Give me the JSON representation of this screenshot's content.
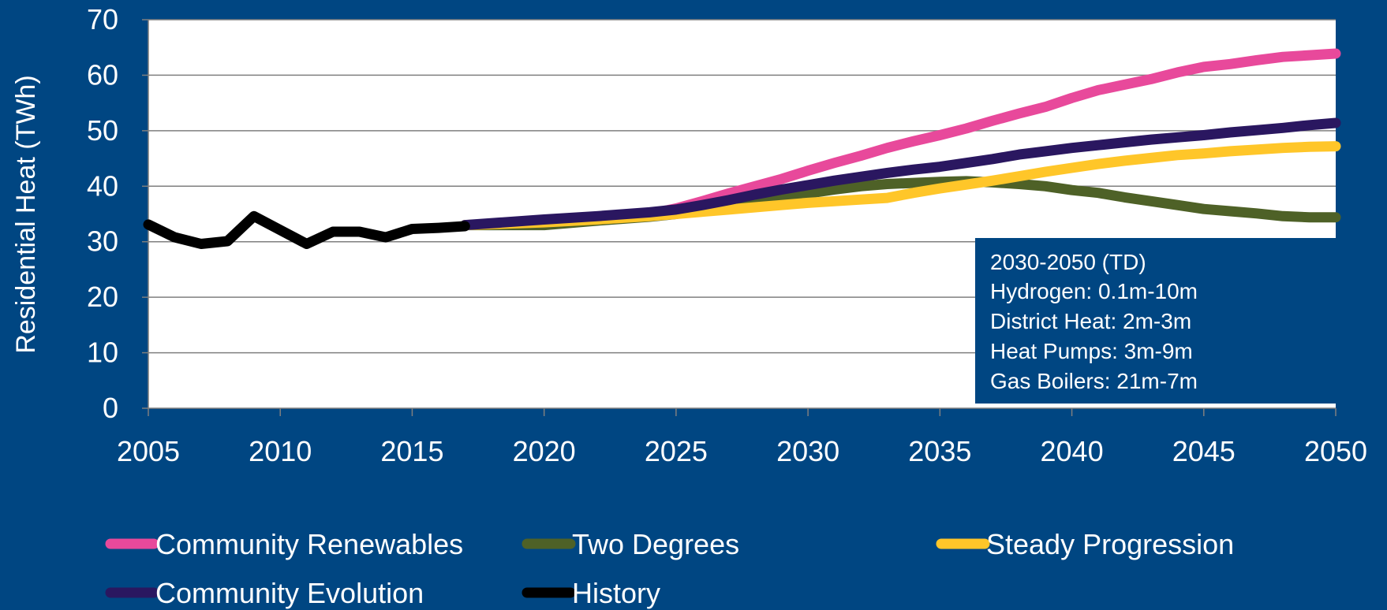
{
  "chart_data": {
    "type": "line",
    "title": "",
    "xlabel": "",
    "ylabel": "Residential Heat (TWh)",
    "xlim": [
      2005,
      2050
    ],
    "ylim": [
      0,
      70
    ],
    "xticks": [
      2005,
      2010,
      2015,
      2020,
      2025,
      2030,
      2035,
      2040,
      2045,
      2050
    ],
    "yticks": [
      0,
      10,
      20,
      30,
      40,
      50,
      60,
      70
    ],
    "grid": "horizontal",
    "legend_position": "bottom",
    "series": [
      {
        "name": "Community Renewables",
        "color": "#E8499B",
        "x": [
          2017,
          2020,
          2022,
          2024,
          2025,
          2026,
          2027,
          2028,
          2029,
          2030,
          2031,
          2032,
          2033,
          2034,
          2035,
          2036,
          2037,
          2038,
          2039,
          2040,
          2041,
          2042,
          2043,
          2044,
          2045,
          2046,
          2047,
          2048,
          2049,
          2050
        ],
        "y": [
          33,
          33.5,
          34.2,
          35,
          36,
          37.3,
          38.7,
          40,
          41.3,
          42.8,
          44.2,
          45.5,
          46.9,
          48.1,
          49.2,
          50.4,
          51.8,
          53.1,
          54.3,
          55.9,
          57.3,
          58.3,
          59.3,
          60.5,
          61.5,
          62,
          62.7,
          63.3,
          63.6,
          63.9
        ]
      },
      {
        "name": "Two Degrees",
        "color": "#4E6127",
        "x": [
          2017,
          2020,
          2022,
          2024,
          2025,
          2026,
          2027,
          2028,
          2029,
          2030,
          2031,
          2032,
          2033,
          2034,
          2035,
          2036,
          2037,
          2038,
          2039,
          2040,
          2041,
          2042,
          2043,
          2044,
          2045,
          2046,
          2047,
          2048,
          2049,
          2050
        ],
        "y": [
          33,
          33,
          33.8,
          34.5,
          35,
          35.8,
          36.5,
          37.2,
          37.9,
          38.7,
          39.4,
          40,
          40.4,
          40.6,
          40.8,
          40.9,
          40.7,
          40.4,
          40,
          39.3,
          38.8,
          38,
          37.3,
          36.6,
          35.9,
          35.5,
          35.1,
          34.6,
          34.4,
          34.4
        ]
      },
      {
        "name": "Steady Progression",
        "color": "#FFC629",
        "x": [
          2017,
          2020,
          2022,
          2024,
          2025,
          2026,
          2027,
          2028,
          2029,
          2030,
          2031,
          2032,
          2033,
          2034,
          2035,
          2036,
          2037,
          2038,
          2039,
          2040,
          2041,
          2042,
          2043,
          2044,
          2045,
          2046,
          2047,
          2048,
          2049,
          2050
        ],
        "y": [
          33,
          33.5,
          34,
          34.6,
          35,
          35.4,
          35.8,
          36.2,
          36.6,
          37,
          37.3,
          37.6,
          37.9,
          38.8,
          39.6,
          40.3,
          41,
          41.8,
          42.6,
          43.3,
          44,
          44.6,
          45.1,
          45.6,
          45.9,
          46.3,
          46.6,
          46.9,
          47.1,
          47.2
        ]
      },
      {
        "name": "Community Evolution",
        "color": "#2A1760",
        "x": [
          2017,
          2020,
          2022,
          2024,
          2025,
          2026,
          2027,
          2028,
          2029,
          2030,
          2031,
          2032,
          2033,
          2034,
          2035,
          2036,
          2037,
          2038,
          2039,
          2040,
          2041,
          2042,
          2043,
          2044,
          2045,
          2046,
          2047,
          2048,
          2049,
          2050
        ],
        "y": [
          33,
          34,
          34.6,
          35.3,
          35.8,
          36.6,
          37.5,
          38.5,
          39.4,
          40.2,
          41,
          41.7,
          42.4,
          43,
          43.5,
          44.2,
          44.9,
          45.7,
          46.3,
          46.9,
          47.4,
          47.9,
          48.4,
          48.8,
          49.2,
          49.7,
          50.1,
          50.5,
          51,
          51.4
        ]
      },
      {
        "name": "History",
        "color": "#000000",
        "x": [
          2005,
          2006,
          2007,
          2008,
          2009,
          2010,
          2011,
          2012,
          2013,
          2014,
          2015,
          2016,
          2017
        ],
        "y": [
          33.1,
          30.8,
          29.6,
          30.1,
          34.6,
          32.1,
          29.6,
          31.8,
          31.8,
          30.8,
          32.3,
          32.5,
          32.8
        ]
      }
    ]
  },
  "annotation": {
    "lines": [
      "2030-2050 (TD)",
      "Hydrogen: 0.1m-10m",
      "District Heat: 2m-3m",
      "Heat Pumps: 3m-9m",
      "Gas Boilers: 21m-7m"
    ]
  }
}
